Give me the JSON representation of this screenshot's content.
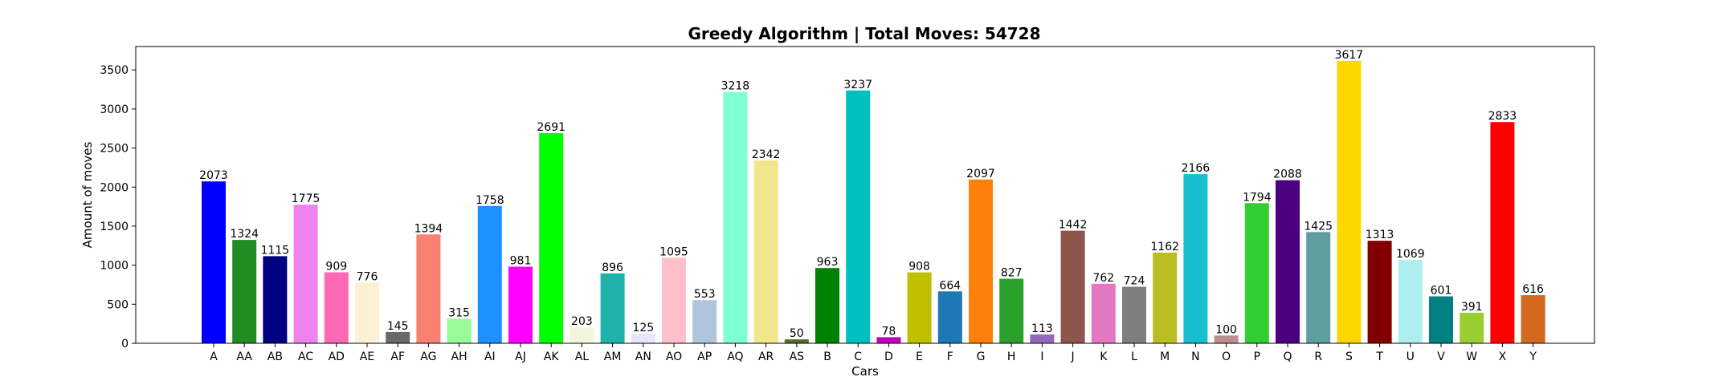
{
  "chart_data": {
    "type": "bar",
    "title": "Greedy Algorithm | Total Moves: 54728",
    "xlabel": "Cars",
    "ylabel": "Amount of moves",
    "ylim": [
      0,
      3800
    ],
    "yticks": [
      0,
      500,
      1000,
      1500,
      2000,
      2500,
      3000,
      3500
    ],
    "grid": false,
    "categories": [
      "A",
      "AA",
      "AB",
      "AC",
      "AD",
      "AE",
      "AF",
      "AG",
      "AH",
      "AI",
      "AJ",
      "AK",
      "AL",
      "AM",
      "AN",
      "AO",
      "AP",
      "AQ",
      "AR",
      "AS",
      "B",
      "C",
      "D",
      "E",
      "F",
      "G",
      "H",
      "I",
      "J",
      "K",
      "L",
      "M",
      "N",
      "O",
      "P",
      "Q",
      "R",
      "S",
      "T",
      "U",
      "V",
      "W",
      "X",
      "Y"
    ],
    "values": [
      2073,
      1324,
      1115,
      1775,
      909,
      776,
      145,
      1394,
      315,
      1758,
      981,
      2691,
      203,
      896,
      125,
      1095,
      553,
      3218,
      2342,
      50,
      963,
      3237,
      78,
      908,
      664,
      2097,
      827,
      113,
      1442,
      762,
      724,
      1162,
      2166,
      100,
      1794,
      2088,
      1425,
      3617,
      1313,
      1069,
      601,
      391,
      2833,
      616
    ],
    "colors": [
      "#0000ff",
      "#228b22",
      "#000080",
      "#ee82ee",
      "#ff69b4",
      "#ffefd5",
      "#696969",
      "#fa8072",
      "#98fb98",
      "#1e90ff",
      "#ff00ff",
      "#00ff00",
      "#f5f5dc",
      "#20b2aa",
      "#e6e6fa",
      "#ffc0cb",
      "#b0c4de",
      "#7fffd4",
      "#f0e68c",
      "#556b2f",
      "#008000",
      "#00bfbf",
      "#bf00bf",
      "#bfbf00",
      "#1f77b4",
      "#ff7f0e",
      "#2ca02c",
      "#9467bd",
      "#8c564b",
      "#e377c2",
      "#7f7f7f",
      "#bcbd22",
      "#17becf",
      "#bc8f8f",
      "#32cd32",
      "#4b0082",
      "#5f9ea0",
      "#ffd700",
      "#800000",
      "#afeeee",
      "#008080",
      "#9acd32",
      "#ff0000",
      "#d2691e"
    ]
  }
}
